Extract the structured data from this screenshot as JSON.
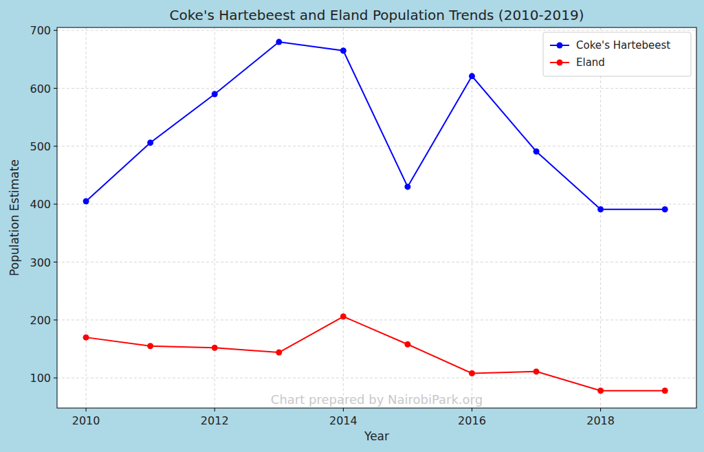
{
  "chart_data": {
    "type": "line",
    "title": "Coke's Hartebeest and Eland Population Trends (2010-2019)",
    "x_label": "Year",
    "y_label": "Population Estimate",
    "annotations": [
      "Chart prepared by NairobiPark.org"
    ],
    "x": [
      2010,
      2011,
      2012,
      2013,
      2014,
      2015,
      2016,
      2017,
      2018,
      2019
    ],
    "series": [
      {
        "name": "Coke's Hartebeest",
        "color": "#0000ff",
        "marker": "circle",
        "line_style": "solid",
        "values": [
          405,
          506,
          590,
          680,
          665,
          430,
          621,
          491,
          391,
          391
        ]
      },
      {
        "name": "Eland",
        "color": "#ff0000",
        "marker": "circle",
        "line_style": "solid",
        "values": [
          170,
          155,
          152,
          144,
          206,
          158,
          108,
          111,
          78,
          78
        ]
      }
    ],
    "xlim": [
      2009.55,
      2019.49
    ],
    "ylim": [
      48,
      705
    ],
    "xticks": [
      2010,
      2012,
      2014,
      2016,
      2018
    ],
    "yticks": [
      100,
      200,
      300,
      400,
      500,
      600,
      700
    ],
    "grid": true,
    "legend": "upper right"
  }
}
